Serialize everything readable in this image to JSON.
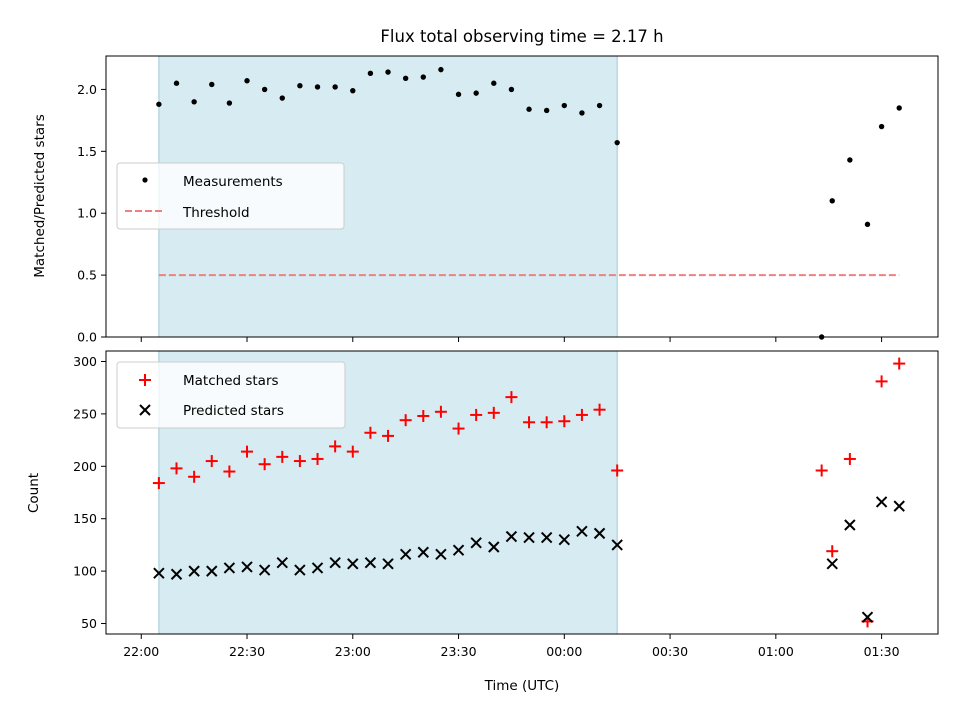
{
  "chart_data": [
    {
      "type": "scatter",
      "title": "Flux total observing time = 2.17 h",
      "xlabel": "",
      "ylabel": "Matched/Predicted stars",
      "xlim": [
        1310,
        1546
      ],
      "ylim": [
        0,
        2.27
      ],
      "yticks": [
        "0.0",
        "0.5",
        "1.0",
        "1.5",
        "2.0"
      ],
      "ytick_values": [
        0,
        0.5,
        1.0,
        1.5,
        2.0
      ],
      "shaded_range": [
        1325,
        1455
      ],
      "legend": {
        "placement": "center-left",
        "entries": [
          "Measurements",
          "Threshold"
        ]
      },
      "series": [
        {
          "name": "Measurements",
          "color": "#000000",
          "marker": "dot",
          "x": [
            1325,
            1330,
            1335,
            1340,
            1345,
            1350,
            1355,
            1360,
            1365,
            1370,
            1375,
            1380,
            1385,
            1390,
            1395,
            1400,
            1405,
            1410,
            1415,
            1420,
            1425,
            1430,
            1435,
            1440,
            1445,
            1450,
            1455,
            1513,
            1516,
            1521,
            1526,
            1530,
            1535
          ],
          "y": [
            1.88,
            2.05,
            1.9,
            2.04,
            1.89,
            2.07,
            2.0,
            1.93,
            2.03,
            2.02,
            2.02,
            1.99,
            2.13,
            2.14,
            2.09,
            2.1,
            2.16,
            1.96,
            1.97,
            2.05,
            2.0,
            1.84,
            1.83,
            1.87,
            1.81,
            1.87,
            1.57,
            0.0,
            1.1,
            1.43,
            0.91,
            1.7,
            1.85
          ]
        },
        {
          "name": "Threshold",
          "color": "#f08080",
          "style": "dashed",
          "x": [
            1325,
            1535
          ],
          "y": [
            0.5,
            0.5
          ]
        }
      ]
    },
    {
      "type": "scatter",
      "title": "",
      "xlabel": "Time (UTC)",
      "ylabel": "Count",
      "xlim": [
        1310,
        1546
      ],
      "ylim": [
        40,
        310
      ],
      "yticks": [
        "50",
        "100",
        "150",
        "200",
        "250",
        "300"
      ],
      "ytick_values": [
        50,
        100,
        150,
        200,
        250,
        300
      ],
      "x_ticks": [
        "22:00",
        "22:30",
        "23:00",
        "23:30",
        "00:00",
        "00:30",
        "01:00",
        "01:30"
      ],
      "x_tick_values": [
        1320,
        1350,
        1380,
        1410,
        1440,
        1470,
        1500,
        1530
      ],
      "shaded_range": [
        1325,
        1455
      ],
      "legend": {
        "placement": "top-left",
        "entries": [
          "Matched stars",
          "Predicted stars"
        ]
      },
      "series": [
        {
          "name": "Matched stars",
          "color": "#ff0000",
          "marker": "plus",
          "x": [
            1325,
            1330,
            1335,
            1340,
            1345,
            1350,
            1355,
            1360,
            1365,
            1370,
            1375,
            1380,
            1385,
            1390,
            1395,
            1400,
            1405,
            1410,
            1415,
            1420,
            1425,
            1430,
            1435,
            1440,
            1445,
            1450,
            1455,
            1513,
            1516,
            1521,
            1526,
            1530,
            1535
          ],
          "y": [
            184,
            198,
            190,
            205,
            195,
            214,
            202,
            209,
            205,
            207,
            219,
            214,
            232,
            229,
            244,
            248,
            252,
            236,
            249,
            251,
            266,
            242,
            242,
            243,
            249,
            254,
            196,
            196,
            119,
            207,
            52,
            281,
            298
          ]
        },
        {
          "name": "Predicted stars",
          "color": "#000000",
          "marker": "x",
          "x": [
            1325,
            1330,
            1335,
            1340,
            1345,
            1350,
            1355,
            1360,
            1365,
            1370,
            1375,
            1380,
            1385,
            1390,
            1395,
            1400,
            1405,
            1410,
            1415,
            1420,
            1425,
            1430,
            1435,
            1440,
            1445,
            1450,
            1455,
            1516,
            1521,
            1526,
            1530,
            1535
          ],
          "y": [
            98,
            97,
            100,
            100,
            103,
            104,
            101,
            108,
            101,
            103,
            108,
            107,
            108,
            107,
            116,
            118,
            116,
            120,
            127,
            123,
            133,
            132,
            132,
            130,
            138,
            136,
            125,
            107,
            144,
            56,
            166,
            162
          ]
        }
      ]
    }
  ]
}
